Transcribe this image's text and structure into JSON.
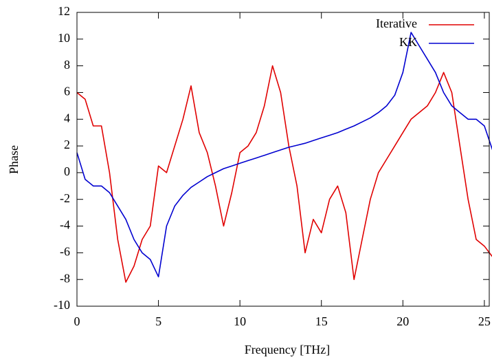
{
  "chart_data": {
    "type": "line",
    "xlabel": "Frequency [THz]",
    "ylabel": "Phase",
    "x": [
      0,
      0.5,
      1,
      1.5,
      2,
      2.5,
      3,
      3.5,
      4,
      4.5,
      5,
      5.5,
      6,
      6.5,
      7,
      7.5,
      8,
      8.5,
      9,
      9.5,
      10,
      10.5,
      11,
      11.5,
      12,
      12.5,
      13,
      13.5,
      14,
      14.5,
      15,
      15.5,
      16,
      16.5,
      17,
      17.5,
      18,
      18.5,
      19,
      19.5,
      20,
      20.5,
      21,
      21.5,
      22,
      22.5,
      23,
      23.5,
      24,
      24.5,
      25,
      25.5
    ],
    "series": [
      {
        "name": "Iterative",
        "color": "#e00000",
        "values": [
          6,
          5.5,
          3.5,
          3.5,
          0,
          -5,
          -8.2,
          -7,
          -5,
          -4,
          0.5,
          0,
          2,
          4,
          6.5,
          3,
          1.5,
          -1,
          -4,
          -1.5,
          1.5,
          2,
          3,
          5,
          8,
          6,
          2,
          -1,
          -6,
          -3.5,
          -4.5,
          -2,
          -1,
          -3,
          -8,
          -5,
          -2,
          0,
          1,
          2,
          3,
          4,
          4.5,
          5,
          6,
          7.5,
          6,
          2,
          -2,
          -5,
          -5.5,
          -6.3
        ]
      },
      {
        "name": "KK",
        "color": "#0000d0",
        "values": [
          1.5,
          -0.5,
          -1,
          -1,
          -1.5,
          -2.5,
          -3.5,
          -5,
          -6,
          -6.5,
          -7.8,
          -4,
          -2.5,
          -1.7,
          -1.1,
          -0.7,
          -0.3,
          0,
          0.3,
          0.5,
          0.7,
          0.9,
          1.1,
          1.3,
          1.5,
          1.7,
          1.9,
          2.05,
          2.2,
          2.4,
          2.6,
          2.8,
          3.0,
          3.25,
          3.5,
          3.8,
          4.1,
          4.5,
          5.0,
          5.8,
          7.5,
          10.5,
          9.5,
          8.5,
          7.5,
          6,
          5,
          4.5,
          4,
          4,
          3.5,
          1.7
        ]
      }
    ],
    "xlim": [
      0,
      25.3
    ],
    "ylim": [
      -10,
      12
    ],
    "xticks": [
      0,
      5,
      10,
      15,
      20,
      25
    ],
    "yticks": [
      -10,
      -8,
      -6,
      -4,
      -2,
      0,
      2,
      4,
      6,
      8,
      10,
      12
    ],
    "legend": "top-right"
  }
}
